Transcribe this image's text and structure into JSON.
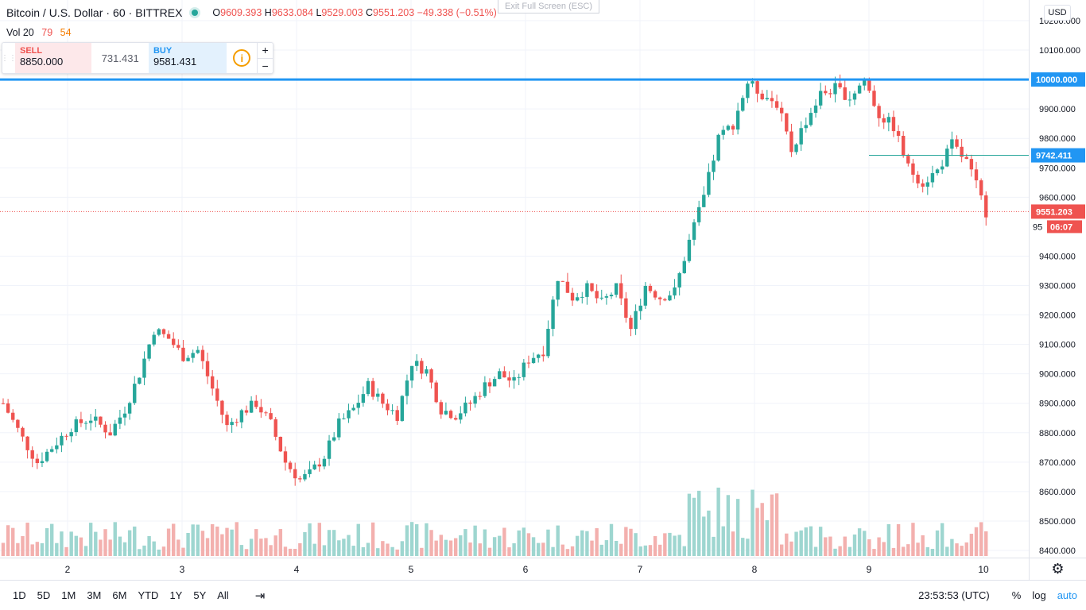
{
  "header": {
    "symbol": "Bitcoin / U.S. Dollar",
    "interval": "60",
    "exchange": "BITTREX",
    "open_label": "O",
    "open": "9609.393",
    "high_label": "H",
    "high": "9633.084",
    "low_label": "L",
    "low": "9529.003",
    "close_label": "C",
    "close": "9551.203",
    "change": "−49.338 (−0.51%)",
    "volume_label": "Vol 20",
    "volume_v1": "79",
    "volume_v2": "54"
  },
  "fullscreen_hint": "Exit Full Screen (ESC)",
  "trade_panel": {
    "sell_label": "SELL",
    "sell_value": "8850.000",
    "spread": "731.431",
    "buy_label": "BUY",
    "buy_value": "9581.431",
    "info_icon": "i",
    "plus": "+",
    "minus": "−"
  },
  "currency": "USD",
  "price_axis": {
    "ticks": [
      "10200.000",
      "10100.000",
      "9900.000",
      "9800.000",
      "9700.000",
      "9600.000",
      "9400.000",
      "9300.000",
      "9200.000",
      "9100.000",
      "9000.000",
      "8900.000",
      "8800.000",
      "8700.000",
      "8600.000",
      "8500.000",
      "8400.000"
    ],
    "alert_label": "10000.000",
    "marker_label": "9742.411",
    "last_label": "9551.203",
    "countdown": "06:07",
    "partial_label": "95"
  },
  "time_axis": {
    "labels": [
      "2",
      "3",
      "4",
      "5",
      "6",
      "7",
      "8",
      "9",
      "10"
    ]
  },
  "bottom_bar": {
    "timeframes": [
      "1D",
      "5D",
      "1M",
      "3M",
      "6M",
      "YTD",
      "1Y",
      "5Y",
      "All"
    ],
    "clock": "23:53:53 (UTC)",
    "percent": "%",
    "log": "log",
    "auto": "auto"
  },
  "colors": {
    "up": "#26a69a",
    "down": "#ef5350",
    "alert": "#2196f3",
    "up_vol": "#9ed6d0",
    "down_vol": "#f3b0ae"
  },
  "chart_data": {
    "type": "candlestick",
    "title": "Bitcoin / U.S. Dollar · 60 · BITTREX",
    "ylim": [
      8400,
      10250
    ],
    "x_ticks": [
      "2",
      "3",
      "4",
      "5",
      "6",
      "7",
      "8",
      "9",
      "10"
    ],
    "alert_line": 10000,
    "last_price": 9551.203,
    "marker_price": 9742.411,
    "close_path": [
      [
        0,
        8900
      ],
      [
        4,
        8780
      ],
      [
        7,
        8700
      ],
      [
        10,
        8750
      ],
      [
        14,
        8820
      ],
      [
        18,
        8850
      ],
      [
        22,
        8800
      ],
      [
        25,
        8880
      ],
      [
        28,
        9000
      ],
      [
        31,
        9150
      ],
      [
        34,
        9120
      ],
      [
        37,
        9060
      ],
      [
        40,
        9080
      ],
      [
        43,
        8950
      ],
      [
        46,
        8820
      ],
      [
        49,
        8870
      ],
      [
        52,
        8900
      ],
      [
        55,
        8830
      ],
      [
        58,
        8700
      ],
      [
        61,
        8640
      ],
      [
        63,
        8660
      ],
      [
        66,
        8720
      ],
      [
        69,
        8830
      ],
      [
        72,
        8880
      ],
      [
        75,
        8960
      ],
      [
        78,
        8900
      ],
      [
        81,
        8860
      ],
      [
        84,
        9040
      ],
      [
        87,
        9010
      ],
      [
        90,
        8880
      ],
      [
        93,
        8860
      ],
      [
        96,
        8900
      ],
      [
        99,
        8960
      ],
      [
        102,
        9000
      ],
      [
        105,
        8970
      ],
      [
        108,
        9050
      ],
      [
        111,
        9080
      ],
      [
        114,
        9330
      ],
      [
        117,
        9260
      ],
      [
        120,
        9290
      ],
      [
        123,
        9240
      ],
      [
        126,
        9290
      ],
      [
        129,
        9150
      ],
      [
        132,
        9300
      ],
      [
        135,
        9260
      ],
      [
        138,
        9280
      ],
      [
        141,
        9450
      ],
      [
        144,
        9600
      ],
      [
        147,
        9800
      ],
      [
        150,
        9850
      ],
      [
        153,
        9990
      ],
      [
        156,
        9950
      ],
      [
        159,
        9920
      ],
      [
        162,
        9760
      ],
      [
        165,
        9860
      ],
      [
        168,
        9950
      ],
      [
        171,
        9970
      ],
      [
        174,
        9940
      ],
      [
        177,
        10000
      ],
      [
        180,
        9880
      ],
      [
        183,
        9840
      ],
      [
        186,
        9700
      ],
      [
        189,
        9650
      ],
      [
        192,
        9690
      ],
      [
        195,
        9780
      ],
      [
        198,
        9720
      ],
      [
        200,
        9640
      ],
      [
        202,
        9551
      ]
    ]
  }
}
